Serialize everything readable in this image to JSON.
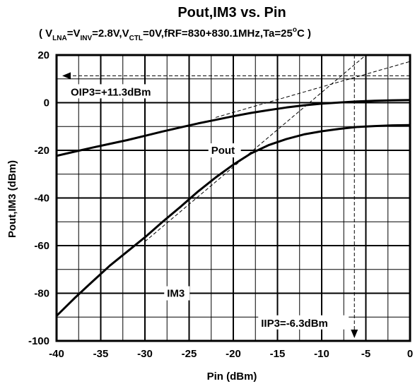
{
  "chart_data": {
    "type": "line",
    "title": "Pout,IM3 vs. Pin",
    "subtitle": {
      "open": "( V",
      "sub_lna": "LNA",
      "eq1": "=V",
      "sub_inv": "INV",
      "eq2": "=2.8V,V",
      "sub_ctl": "CTL",
      "eq3": "=0V,fRF=830+830.1MHz,Ta=25",
      "deg": "o",
      "close": "C )"
    },
    "xlabel": "Pin (dBm)",
    "ylabel": "Pout,IM3 (dBm)",
    "xlim": [
      -40,
      0
    ],
    "ylim": [
      -100,
      20
    ],
    "xticks": [
      -40,
      -35,
      -30,
      -25,
      -20,
      -15,
      -10,
      -5,
      0
    ],
    "yticks": [
      -100,
      -80,
      -60,
      -40,
      -20,
      0,
      20
    ],
    "xtick_labels": [
      "-40",
      "-35",
      "-30",
      "-25",
      "-20",
      "-15",
      "-10",
      "-5",
      "0"
    ],
    "ytick_labels": [
      "-100",
      "-80",
      "-60",
      "-40",
      "-20",
      "0",
      "20"
    ],
    "grid": true,
    "series": [
      {
        "name": "Pout",
        "x": [
          -40,
          -38,
          -36,
          -34,
          -32,
          -30,
          -28,
          -26,
          -24,
          -22,
          -20,
          -18,
          -16,
          -14,
          -12,
          -10,
          -8,
          -6,
          -4,
          -2,
          0
        ],
        "values": [
          -22.3,
          -20.6,
          -18.9,
          -17.3,
          -15.7,
          -13.9,
          -12.1,
          -10.4,
          -8.7,
          -7.2,
          -5.7,
          -4.3,
          -3.1,
          -2.0,
          -1.1,
          -0.4,
          0.1,
          0.5,
          0.8,
          1.0,
          1.1
        ]
      },
      {
        "name": "IM3",
        "x": [
          -40,
          -38,
          -36,
          -34,
          -32,
          -30,
          -28,
          -26,
          -24,
          -22,
          -20,
          -18,
          -16,
          -14,
          -12,
          -10,
          -8,
          -6,
          -4,
          -2,
          0
        ],
        "values": [
          -89.5,
          -82.2,
          -75.3,
          -68.5,
          -62.5,
          -56.5,
          -50.0,
          -43.8,
          -37.3,
          -31.4,
          -26.0,
          -21.3,
          -17.8,
          -15.3,
          -13.3,
          -12.0,
          -11.0,
          -10.2,
          -9.8,
          -9.5,
          -9.4
        ]
      }
    ],
    "extrapolations": [
      {
        "x": [
          -22,
          0
        ],
        "values": [
          -6.2,
          17.3
        ]
      },
      {
        "x": [
          -30,
          -1.8
        ],
        "values": [
          -58.3,
          30
        ]
      }
    ],
    "annotations": [
      {
        "text": "OIP3=+11.3dBm",
        "value": 11.3,
        "axis": "y"
      },
      {
        "text": "IIP3=-6.3dBm",
        "value": -6.3,
        "axis": "x"
      }
    ],
    "series_labels": [
      {
        "text": "Pout",
        "series": "Pout"
      },
      {
        "text": "IM3",
        "series": "IM3"
      }
    ]
  }
}
